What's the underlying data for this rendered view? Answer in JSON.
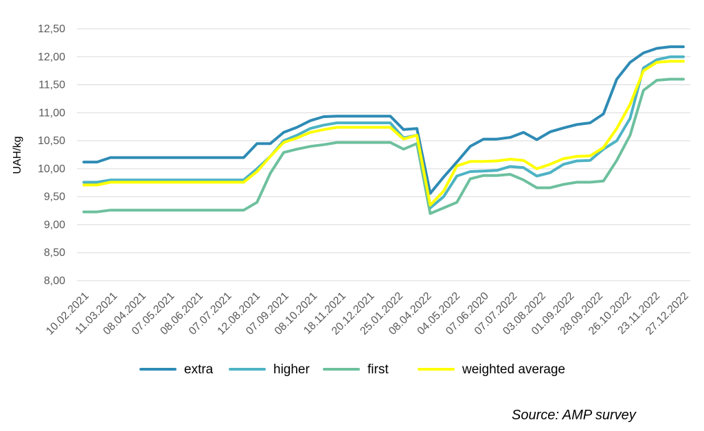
{
  "chart_data": {
    "type": "line",
    "ylabel": "UAH/kg",
    "ylim": [
      8.0,
      12.5
    ],
    "yticks": [
      "12,50",
      "12,00",
      "11,50",
      "11,00",
      "10,50",
      "10,00",
      "9,50",
      "9,00",
      "8,50",
      "8,00"
    ],
    "ytick_values": [
      12.5,
      12.0,
      11.5,
      11.0,
      10.5,
      10.0,
      9.5,
      9.0,
      8.5,
      8.0
    ],
    "grid": true,
    "legend_position": "bottom",
    "x_tick_labels": [
      "10.02.2021",
      "11.03.2021",
      "08.04.2021",
      "07.05.2021",
      "08.06.2021",
      "07.07.2021",
      "12.08.2021",
      "07.09.2021",
      "08.10.2021",
      "18.11.2021",
      "20.12.2021",
      "25.01.2022",
      "08.04.2022",
      "04.05.2022",
      "07.06.2020",
      "07.07.2022",
      "03.08.2022",
      "01.09.2022",
      "28.09.2022",
      "26.10.2022",
      "23.11.2022",
      "27.12.2022"
    ],
    "series": [
      {
        "name": "extra",
        "color": "#2E8BB5",
        "values": [
          10.12,
          10.12,
          10.2,
          10.2,
          10.2,
          10.2,
          10.2,
          10.2,
          10.2,
          10.2,
          10.2,
          10.2,
          10.2,
          10.45,
          10.45,
          10.65,
          10.74,
          10.86,
          10.93,
          10.94,
          10.94,
          10.94,
          10.94,
          10.94,
          10.7,
          10.72,
          9.56,
          9.85,
          10.12,
          10.4,
          10.53,
          10.53,
          10.56,
          10.65,
          10.52,
          10.66,
          10.73,
          10.79,
          10.82,
          10.98,
          11.6,
          11.9,
          12.07,
          12.15,
          12.18,
          12.18
        ]
      },
      {
        "name": "higher",
        "color": "#4DB3C4",
        "values": [
          9.76,
          9.76,
          9.8,
          9.8,
          9.8,
          9.8,
          9.8,
          9.8,
          9.8,
          9.8,
          9.8,
          9.8,
          9.8,
          10.0,
          10.22,
          10.5,
          10.6,
          10.72,
          10.78,
          10.82,
          10.82,
          10.82,
          10.82,
          10.82,
          10.55,
          10.6,
          9.3,
          9.5,
          9.87,
          9.95,
          9.96,
          9.97,
          10.04,
          10.02,
          9.87,
          9.93,
          10.08,
          10.14,
          10.15,
          10.35,
          10.5,
          10.9,
          11.8,
          11.95,
          12.0,
          12.0
        ]
      },
      {
        "name": "first",
        "color": "#6DC09E",
        "values": [
          9.23,
          9.23,
          9.26,
          9.26,
          9.26,
          9.26,
          9.26,
          9.26,
          9.26,
          9.26,
          9.26,
          9.26,
          9.26,
          9.4,
          9.92,
          10.29,
          10.35,
          10.4,
          10.43,
          10.47,
          10.47,
          10.47,
          10.47,
          10.47,
          10.35,
          10.45,
          9.2,
          9.3,
          9.4,
          9.82,
          9.88,
          9.88,
          9.9,
          9.8,
          9.66,
          9.66,
          9.72,
          9.76,
          9.76,
          9.78,
          10.15,
          10.6,
          11.4,
          11.58,
          11.6,
          11.6
        ]
      },
      {
        "name": "weighted average",
        "color": "#FFFF00",
        "values": [
          9.71,
          9.71,
          9.76,
          9.76,
          9.76,
          9.76,
          9.76,
          9.76,
          9.76,
          9.76,
          9.76,
          9.76,
          9.76,
          9.95,
          10.22,
          10.47,
          10.55,
          10.65,
          10.7,
          10.74,
          10.74,
          10.74,
          10.74,
          10.74,
          10.53,
          10.6,
          9.35,
          9.6,
          10.05,
          10.13,
          10.13,
          10.14,
          10.17,
          10.15,
          10.0,
          10.08,
          10.18,
          10.22,
          10.23,
          10.38,
          10.72,
          11.15,
          11.75,
          11.9,
          11.92,
          11.92
        ]
      }
    ],
    "source": "Source: AMP survey"
  }
}
